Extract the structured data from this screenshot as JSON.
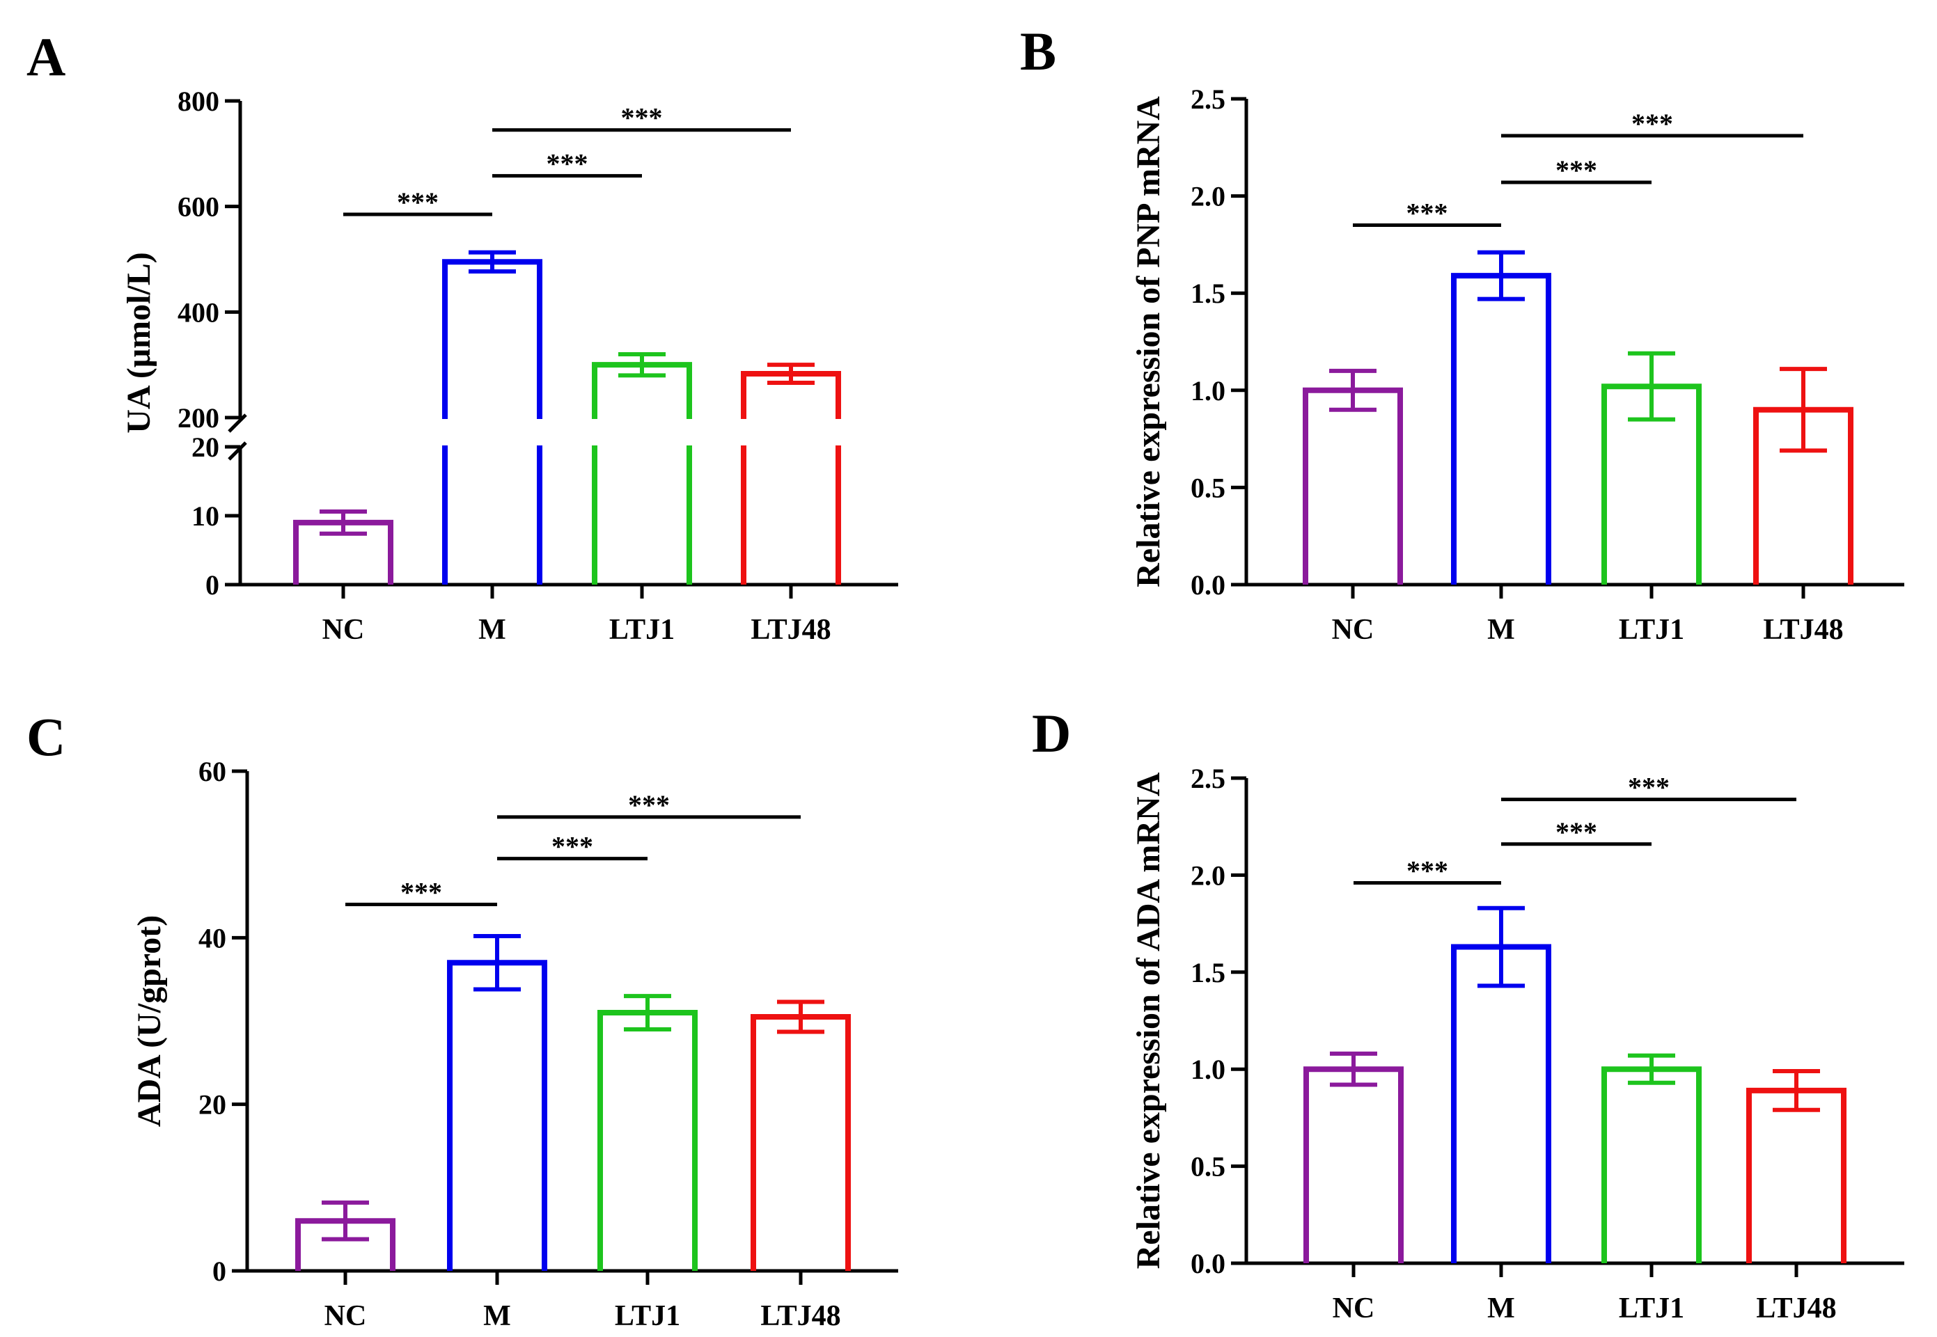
{
  "chart_data": [
    {
      "panel": "A",
      "type": "bar",
      "ylabel": "UA (μmol/L)",
      "categories": [
        "NC",
        "M",
        "LTJ1",
        "LTJ48"
      ],
      "colors": [
        "#8B1A9C",
        "#0000EE",
        "#1DC41D",
        "#EE1111"
      ],
      "values": [
        9,
        495,
        300,
        283
      ],
      "errors": [
        1.6,
        18,
        20,
        17
      ],
      "axis_break": {
        "lower": [
          0,
          20
        ],
        "upper": [
          200,
          800
        ]
      },
      "ticks_lower": [
        0,
        10,
        20
      ],
      "ticks_upper": [
        200,
        400,
        600,
        800
      ],
      "tick_labels_lower": [
        "0",
        "10",
        "20"
      ],
      "tick_labels_upper": [
        "200",
        "400",
        "600",
        "800"
      ],
      "comparisons": [
        {
          "from": "NC",
          "to": "M",
          "label": "***",
          "y": 585
        },
        {
          "from": "M",
          "to": "LTJ1",
          "label": "***",
          "y": 658
        },
        {
          "from": "M",
          "to": "LTJ48",
          "label": "***",
          "y": 745
        }
      ]
    },
    {
      "panel": "B",
      "type": "bar",
      "ylabel": "Relative expression of PNP mRNA",
      "categories": [
        "NC",
        "M",
        "LTJ1",
        "LTJ48"
      ],
      "colors": [
        "#8B1A9C",
        "#0000EE",
        "#1DC41D",
        "#EE1111"
      ],
      "values": [
        1.0,
        1.59,
        1.02,
        0.9
      ],
      "errors": [
        0.1,
        0.12,
        0.17,
        0.21
      ],
      "ylim": [
        0,
        2.5
      ],
      "ticks": [
        0,
        0.5,
        1.0,
        1.5,
        2.0,
        2.5
      ],
      "tick_labels": [
        "0.0",
        "0.5",
        "1.0",
        "1.5",
        "2.0",
        "2.5"
      ],
      "comparisons": [
        {
          "from": "NC",
          "to": "M",
          "label": "***",
          "y": 1.85
        },
        {
          "from": "M",
          "to": "LTJ1",
          "label": "***",
          "y": 2.07
        },
        {
          "from": "M",
          "to": "LTJ48",
          "label": "***",
          "y": 2.31
        }
      ]
    },
    {
      "panel": "C",
      "type": "bar",
      "ylabel": "ADA (U/gprot)",
      "categories": [
        "NC",
        "M",
        "LTJ1",
        "LTJ48"
      ],
      "colors": [
        "#8B1A9C",
        "#0000EE",
        "#1DC41D",
        "#EE1111"
      ],
      "values": [
        6,
        37,
        31,
        30.5
      ],
      "errors": [
        2.2,
        3.2,
        2.0,
        1.8
      ],
      "ylim": [
        0,
        60
      ],
      "ticks": [
        0,
        20,
        40,
        60
      ],
      "tick_labels": [
        "0",
        "20",
        "40",
        "60"
      ],
      "comparisons": [
        {
          "from": "NC",
          "to": "M",
          "label": "***",
          "y": 44
        },
        {
          "from": "M",
          "to": "LTJ1",
          "label": "***",
          "y": 49.5
        },
        {
          "from": "M",
          "to": "LTJ48",
          "label": "***",
          "y": 54.5
        }
      ]
    },
    {
      "panel": "D",
      "type": "bar",
      "ylabel": "Relative expression of ADA mRNA",
      "categories": [
        "NC",
        "M",
        "LTJ1",
        "LTJ48"
      ],
      "colors": [
        "#8B1A9C",
        "#0000EE",
        "#1DC41D",
        "#EE1111"
      ],
      "values": [
        1.0,
        1.63,
        1.0,
        0.89
      ],
      "errors": [
        0.08,
        0.2,
        0.07,
        0.1
      ],
      "ylim": [
        0,
        2.5
      ],
      "ticks": [
        0,
        0.5,
        1.0,
        1.5,
        2.0,
        2.5
      ],
      "tick_labels": [
        "0.0",
        "0.5",
        "1.0",
        "1.5",
        "2.0",
        "2.5"
      ],
      "comparisons": [
        {
          "from": "NC",
          "to": "M",
          "label": "***",
          "y": 1.96
        },
        {
          "from": "M",
          "to": "LTJ1",
          "label": "***",
          "y": 2.16
        },
        {
          "from": "M",
          "to": "LTJ48",
          "label": "***",
          "y": 2.39
        }
      ]
    }
  ]
}
